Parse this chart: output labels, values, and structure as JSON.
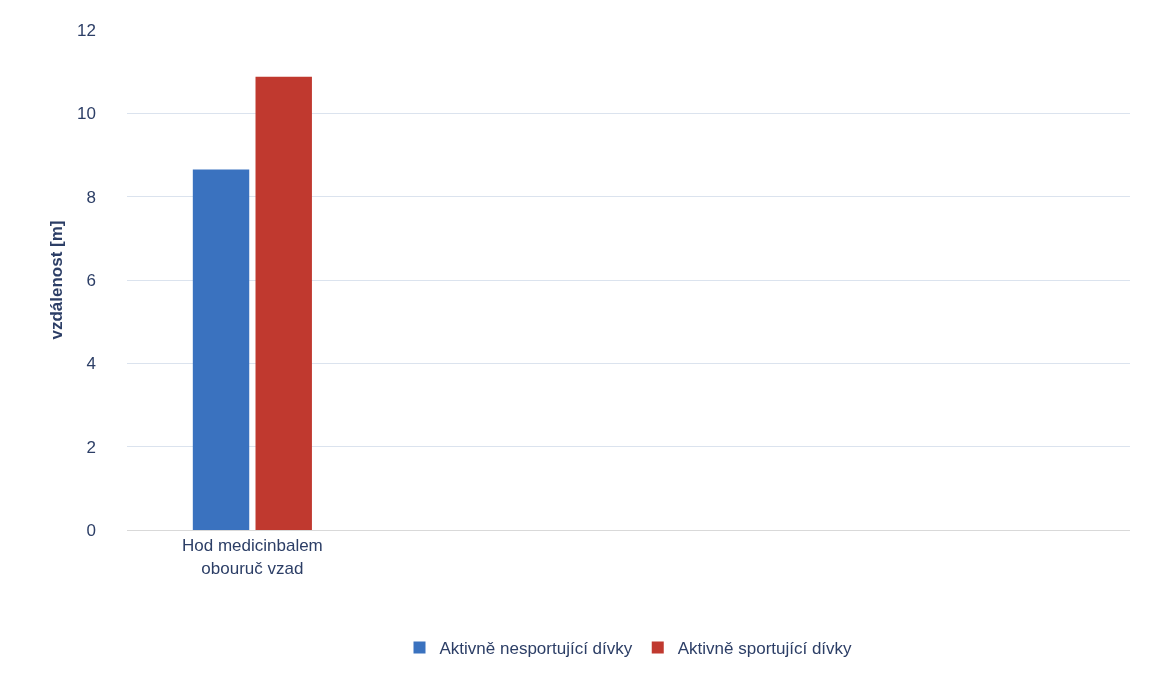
{
  "chart_data": {
    "type": "bar",
    "ylabel": "vzdálenost [m]",
    "categories": [
      "Hod medicinbalem obouruč vzad",
      null,
      null,
      null
    ],
    "series": [
      {
        "name": "Aktivně nesportující dívky",
        "color": "#3a72bf",
        "values": [
          8.65,
          null,
          null,
          null
        ]
      },
      {
        "name": "Aktivně sportující dívky",
        "color": "#c0392f",
        "values": [
          10.88,
          null,
          null,
          null
        ]
      }
    ],
    "ylim": [
      0,
      12
    ],
    "yticks": [
      0,
      2,
      4,
      6,
      8,
      10,
      12
    ],
    "grid": "y",
    "legend": "bottom"
  }
}
